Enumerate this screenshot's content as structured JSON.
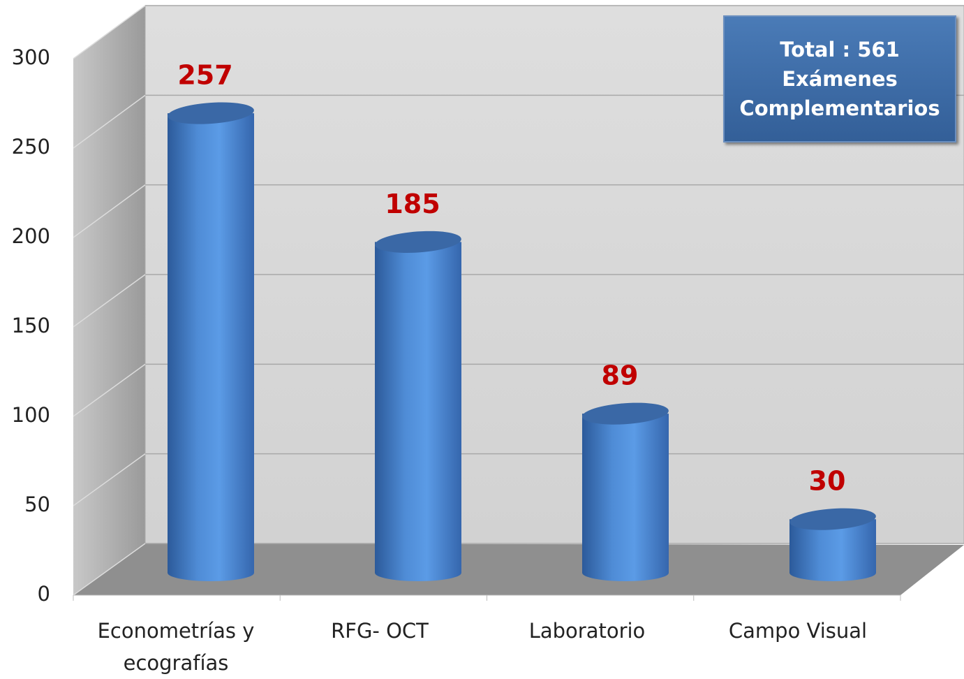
{
  "chart_data": {
    "type": "bar",
    "categories": [
      "Econometrías y ecografías",
      "RFG- OCT",
      "Laboratorio",
      "Campo Visual"
    ],
    "values": [
      257,
      185,
      89,
      30
    ],
    "color": "#4a86d4",
    "value_label_color": "#c00000",
    "ylim": [
      0,
      300
    ],
    "yticks": [
      0,
      50,
      100,
      150,
      200,
      250,
      300
    ],
    "grid": true,
    "annotation": [
      "Total : 561",
      "Exámenes",
      "Complementarios"
    ]
  }
}
